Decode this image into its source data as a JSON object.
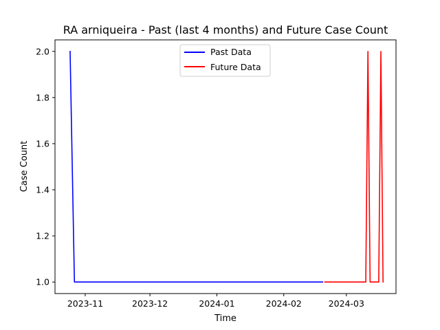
{
  "chart_data": {
    "type": "line",
    "title": "RA arniqueira - Past (last 4 months) and Future Case Count",
    "xlabel": "Time",
    "ylabel": "Case Count",
    "xlim": [
      "2023-10-18",
      "2024-03-24"
    ],
    "ylim": [
      0.95,
      2.05
    ],
    "x_ticks": [
      "2023-11-01",
      "2023-12-01",
      "2024-01-01",
      "2024-02-01",
      "2024-03-01"
    ],
    "x_tick_labels": [
      "2023-11",
      "2023-12",
      "2024-01",
      "2024-02",
      "2024-03"
    ],
    "y_ticks": [
      1.0,
      1.2,
      1.4,
      1.6,
      1.8,
      2.0
    ],
    "y_tick_labels": [
      "1.0",
      "1.2",
      "1.4",
      "1.6",
      "1.8",
      "2.0"
    ],
    "grid": false,
    "legend_position": "top-center",
    "series": [
      {
        "name": "Past Data",
        "color": "#0000ff",
        "x": [
          "2023-10-25",
          "2023-10-27",
          "2024-02-19"
        ],
        "y": [
          2,
          1,
          1
        ]
      },
      {
        "name": "Future Data",
        "color": "#ff0000",
        "x": [
          "2024-02-20",
          "2024-03-10",
          "2024-03-11",
          "2024-03-12",
          "2024-03-16",
          "2024-03-17",
          "2024-03-18"
        ],
        "y": [
          1,
          1,
          2,
          1,
          1,
          2,
          1
        ]
      }
    ]
  }
}
